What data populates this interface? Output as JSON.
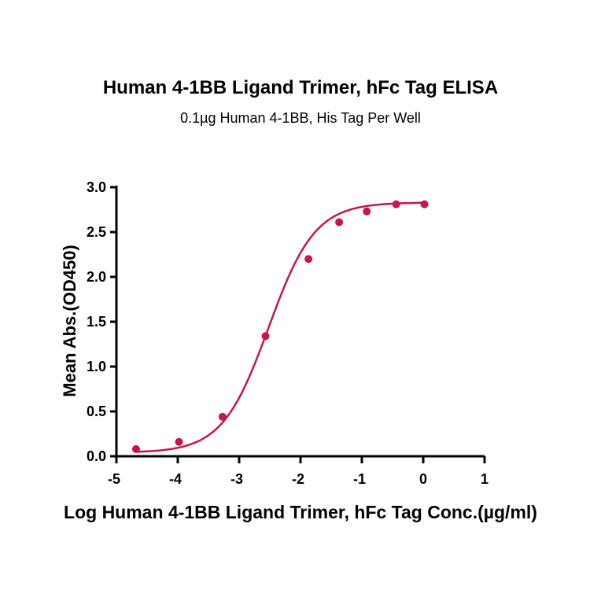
{
  "chart_data": {
    "type": "scatter",
    "title": "Human 4-1BB Ligand Trimer, hFc Tag ELISA",
    "subtitle": "0.1µg Human 4-1BB, His Tag Per Well",
    "xlabel": "Log Human 4-1BB Ligand Trimer, hFc Tag Conc.(µg/ml)",
    "ylabel": "Mean Abs.(OD450)",
    "xlim": [
      -5,
      1
    ],
    "ylim": [
      0,
      3.0
    ],
    "x_ticks": [
      "-5",
      "-4",
      "-3",
      "-2",
      "-1",
      "0",
      "1"
    ],
    "y_ticks": [
      "0.0",
      "0.5",
      "1.0",
      "1.5",
      "2.0",
      "2.5",
      "3.0"
    ],
    "grid": false,
    "legend": "none",
    "series": [
      {
        "x": [
          -4.68,
          -3.98,
          -3.27,
          -2.57,
          -1.87,
          -1.37,
          -0.92,
          -0.44,
          0.02
        ],
        "y": [
          0.08,
          0.16,
          0.44,
          1.34,
          2.2,
          2.61,
          2.73,
          2.81,
          2.81
        ],
        "color": "#c8154a",
        "fit": "sigmoid"
      }
    ]
  }
}
